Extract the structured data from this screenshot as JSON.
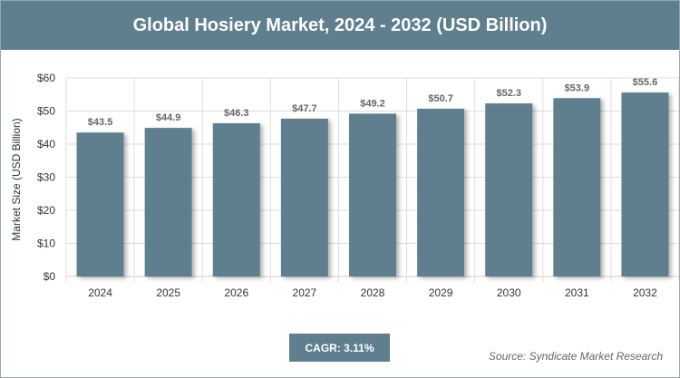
{
  "header": {
    "title": "Global Hosiery Market, 2024 - 2032 (USD Billion)"
  },
  "cagr_label": "CAGR: 3.11%",
  "source_label": "Source: Syndicate Market Research",
  "colors": {
    "accent": "#5f7f8f",
    "bar": "#5f7f8f",
    "grid": "#dddddd",
    "axis_text": "#333333",
    "value_label": "#666666"
  },
  "chart_data": {
    "type": "bar",
    "title": "Global Hosiery Market, 2024 - 2032 (USD Billion)",
    "xlabel": "",
    "ylabel": "Market Size (USD Billion)",
    "categories": [
      "2024",
      "2025",
      "2026",
      "2027",
      "2028",
      "2029",
      "2030",
      "2031",
      "2032"
    ],
    "values": [
      43.5,
      44.9,
      46.3,
      47.7,
      49.2,
      50.7,
      52.3,
      53.9,
      55.6
    ],
    "value_labels": [
      "$43.5",
      "$44.9",
      "$46.3",
      "$47.7",
      "$49.2",
      "$50.7",
      "$52.3",
      "$53.9",
      "$55.6"
    ],
    "ylim": [
      0,
      60
    ],
    "yticks": [
      0,
      10,
      20,
      30,
      40,
      50,
      60
    ],
    "ytick_labels": [
      "$0",
      "$10",
      "$20",
      "$30",
      "$40",
      "$50",
      "$60"
    ],
    "grid": true,
    "legend": "none"
  }
}
